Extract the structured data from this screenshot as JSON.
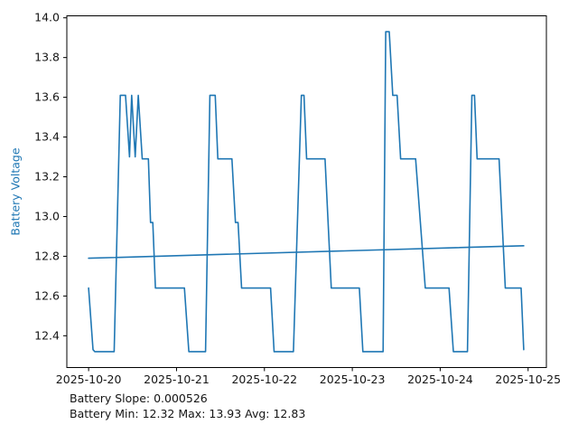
{
  "figure": {
    "background": "#ffffff",
    "footer": {
      "line1": "Battery Slope: 0.000526",
      "line2": "Battery Min: 12.32 Max: 13.93 Avg: 12.83"
    }
  },
  "chart_data": {
    "type": "line",
    "title": "",
    "xlabel": "",
    "ylabel": "Battery Voltage",
    "ylabel_color": "#1f77b4",
    "line_color": "#1f77b4",
    "trend_color": "#1f77b4",
    "axis_color": "#000000",
    "tick_text_color": "#141414",
    "grid": false,
    "legend": "none",
    "x_unit": "days since 2025-10-20 00:00",
    "x_ticks": [
      0,
      1,
      2,
      3,
      4,
      5
    ],
    "x_ticklabels": [
      "2025-10-20",
      "2025-10-21",
      "2025-10-22",
      "2025-10-23",
      "2025-10-24",
      "2025-10-25"
    ],
    "y_ticks": [
      12.4,
      12.6,
      12.8,
      13.0,
      13.2,
      13.4,
      13.6,
      13.8,
      14.0
    ],
    "xlim": [
      -0.248,
      5.208
    ],
    "ylim": [
      12.24,
      14.01
    ],
    "stats": {
      "slope": 0.000526,
      "min": 12.32,
      "max": 13.93,
      "avg": 12.83
    },
    "series": [
      {
        "name": "battery_voltage",
        "points": [
          [
            0.0,
            12.64
          ],
          [
            0.05,
            12.33
          ],
          [
            0.07,
            12.32
          ],
          [
            0.29,
            12.32
          ],
          [
            0.36,
            13.61
          ],
          [
            0.42,
            13.61
          ],
          [
            0.465,
            13.3
          ],
          [
            0.49,
            13.61
          ],
          [
            0.53,
            13.3
          ],
          [
            0.565,
            13.61
          ],
          [
            0.61,
            13.29
          ],
          [
            0.68,
            13.29
          ],
          [
            0.705,
            12.97
          ],
          [
            0.73,
            12.97
          ],
          [
            0.76,
            12.64
          ],
          [
            1.09,
            12.64
          ],
          [
            1.14,
            12.32
          ],
          [
            1.33,
            12.32
          ],
          [
            1.38,
            13.61
          ],
          [
            1.44,
            13.61
          ],
          [
            1.47,
            13.29
          ],
          [
            1.63,
            13.29
          ],
          [
            1.67,
            12.97
          ],
          [
            1.7,
            12.97
          ],
          [
            1.74,
            12.64
          ],
          [
            2.07,
            12.64
          ],
          [
            2.11,
            12.32
          ],
          [
            2.33,
            12.32
          ],
          [
            2.42,
            13.61
          ],
          [
            2.45,
            13.61
          ],
          [
            2.48,
            13.29
          ],
          [
            2.69,
            13.29
          ],
          [
            2.76,
            12.64
          ],
          [
            3.08,
            12.64
          ],
          [
            3.12,
            12.32
          ],
          [
            3.35,
            12.32
          ],
          [
            3.38,
            13.93
          ],
          [
            3.42,
            13.93
          ],
          [
            3.46,
            13.61
          ],
          [
            3.51,
            13.61
          ],
          [
            3.55,
            13.29
          ],
          [
            3.72,
            13.29
          ],
          [
            3.83,
            12.64
          ],
          [
            4.1,
            12.64
          ],
          [
            4.15,
            12.32
          ],
          [
            4.31,
            12.32
          ],
          [
            4.36,
            13.61
          ],
          [
            4.39,
            13.61
          ],
          [
            4.42,
            13.29
          ],
          [
            4.67,
            13.29
          ],
          [
            4.74,
            12.64
          ],
          [
            4.92,
            12.64
          ],
          [
            4.95,
            12.33
          ]
        ]
      },
      {
        "name": "trend",
        "points": [
          [
            0.0,
            12.79
          ],
          [
            4.95,
            12.853
          ]
        ]
      }
    ]
  }
}
